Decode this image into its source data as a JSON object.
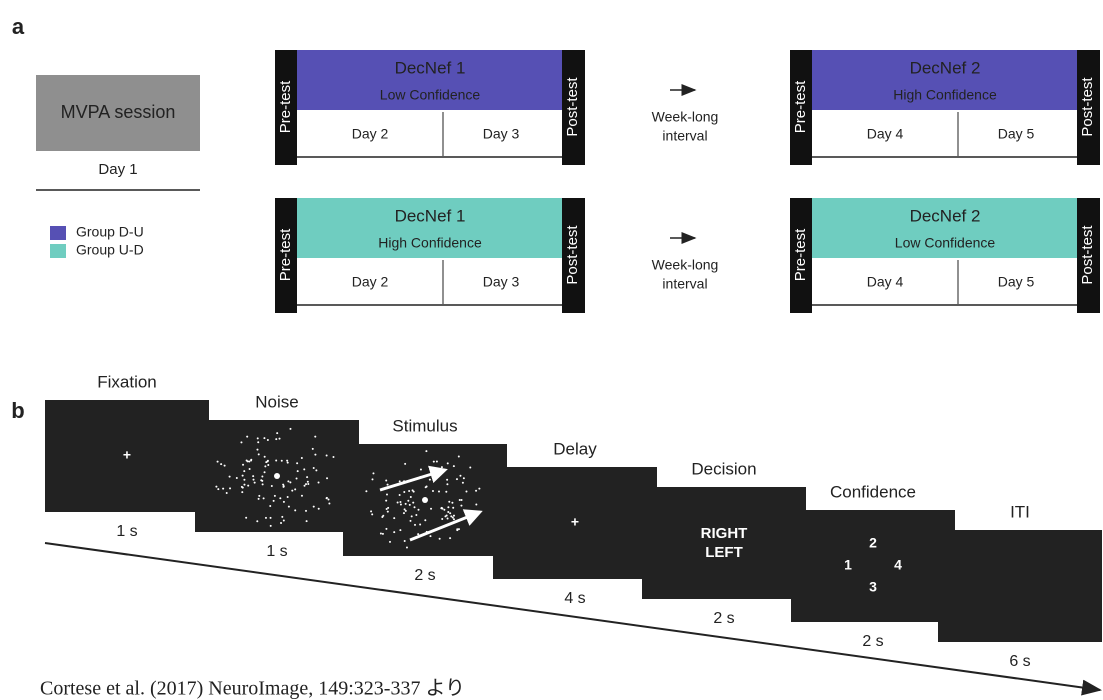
{
  "panel_a": {
    "label": "a",
    "baseline": {
      "box": "MVPA session",
      "day": "Day 1"
    },
    "legend": [
      {
        "name": "Group D-U",
        "color": "#5650b4"
      },
      {
        "name": "Group U-D",
        "color": "#6fcdc0"
      }
    ],
    "rows": [
      {
        "blocks": [
          {
            "pre": "Pre-test",
            "title": "DecNef 1",
            "subtitle": "Low Confidence",
            "days": [
              "Day 2",
              "Day 3"
            ],
            "post": "Post-test",
            "color": "#5650b4"
          },
          {
            "pre": "Pre-test",
            "title": "DecNef 2",
            "subtitle": "High Confidence",
            "days": [
              "Day 4",
              "Day 5"
            ],
            "post": "Post-test",
            "color": "#5650b4"
          }
        ],
        "gap": [
          "Week-long",
          "interval"
        ]
      },
      {
        "blocks": [
          {
            "pre": "Pre-test",
            "title": "DecNef 1",
            "subtitle": "High Confidence",
            "days": [
              "Day 2",
              "Day 3"
            ],
            "post": "Post-test",
            "color": "#6fcdc0"
          },
          {
            "pre": "Pre-test",
            "title": "DecNef 2",
            "subtitle": "Low Confidence",
            "days": [
              "Day 4",
              "Day 5"
            ],
            "post": "Post-test",
            "color": "#6fcdc0"
          }
        ],
        "gap": [
          "Week-long",
          "interval"
        ]
      }
    ]
  },
  "panel_b": {
    "label": "b",
    "screens": [
      {
        "name": "Fixation",
        "duration": "1 s",
        "content": [
          "+"
        ]
      },
      {
        "name": "Noise",
        "duration": "1 s",
        "content": []
      },
      {
        "name": "Stimulus",
        "duration": "2 s",
        "content": []
      },
      {
        "name": "Delay",
        "duration": "4 s",
        "content": [
          "+"
        ]
      },
      {
        "name": "Decision",
        "duration": "2 s",
        "content": [
          "RIGHT",
          "LEFT"
        ]
      },
      {
        "name": "Confidence",
        "duration": "2 s",
        "content": [
          "2",
          "1",
          "4",
          "3"
        ]
      },
      {
        "name": "ITI",
        "duration": "6 s",
        "content": []
      }
    ]
  },
  "source": "Cortese et al. (2017) NeuroImage, 149:323-337 より"
}
